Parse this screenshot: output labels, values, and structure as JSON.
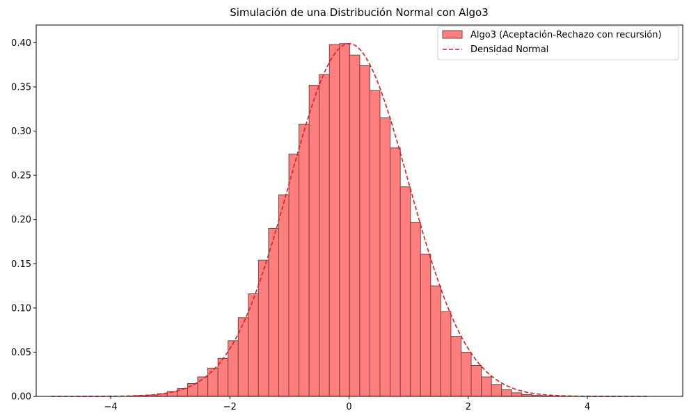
{
  "chart_data": {
    "type": "bar",
    "title": "Simulación de una Distribución Normal con Algo3",
    "xlabel": "",
    "ylabel": "",
    "xlim": [
      -5.25,
      5.6
    ],
    "ylim": [
      0,
      0.42
    ],
    "x_ticks": [
      -4,
      -2,
      0,
      2,
      4
    ],
    "x_tick_labels": [
      "−4",
      "−2",
      "0",
      "2",
      "4"
    ],
    "y_ticks": [
      0.0,
      0.05,
      0.1,
      0.15,
      0.2,
      0.25,
      0.3,
      0.35,
      0.4
    ],
    "y_tick_labels": [
      "0.00",
      "0.05",
      "0.10",
      "0.15",
      "0.20",
      "0.25",
      "0.30",
      "0.35",
      "0.40"
    ],
    "legend_position": "top-right",
    "grid": false,
    "series": [
      {
        "name": "Algo3 (Aceptación-Rechazo con recursión)",
        "kind": "histogram",
        "color": "#ff7f7f",
        "edge_color": "#7a4040",
        "bin_edges": [
          -3.73,
          -3.56,
          -3.39,
          -3.22,
          -3.05,
          -2.88,
          -2.71,
          -2.54,
          -2.37,
          -2.2,
          -2.03,
          -1.86,
          -1.69,
          -1.52,
          -1.35,
          -1.18,
          -1.01,
          -0.84,
          -0.67,
          -0.5,
          -0.33,
          -0.16,
          0.01,
          0.18,
          0.35,
          0.52,
          0.69,
          0.86,
          1.03,
          1.2,
          1.37,
          1.54,
          1.71,
          1.88,
          2.05,
          2.22,
          2.39,
          2.56,
          2.73,
          2.9,
          3.07,
          3.24,
          3.41,
          3.58,
          3.75
        ],
        "values": [
          0.0003,
          0.0008,
          0.0015,
          0.003,
          0.0055,
          0.009,
          0.0145,
          0.022,
          0.032,
          0.043,
          0.063,
          0.089,
          0.116,
          0.154,
          0.19,
          0.228,
          0.274,
          0.308,
          0.352,
          0.364,
          0.398,
          0.399,
          0.386,
          0.374,
          0.346,
          0.315,
          0.281,
          0.237,
          0.197,
          0.161,
          0.125,
          0.096,
          0.068,
          0.05,
          0.035,
          0.022,
          0.0135,
          0.0075,
          0.004,
          0.002,
          0.001,
          0.0005,
          0.0002,
          0.0001
        ]
      },
      {
        "name": "Densidad Normal",
        "kind": "line",
        "style": "dashed",
        "color": "#e31a1c",
        "function": "normal_pdf",
        "mean": 0,
        "std": 1,
        "x_range": [
          -5,
          5
        ]
      }
    ]
  }
}
